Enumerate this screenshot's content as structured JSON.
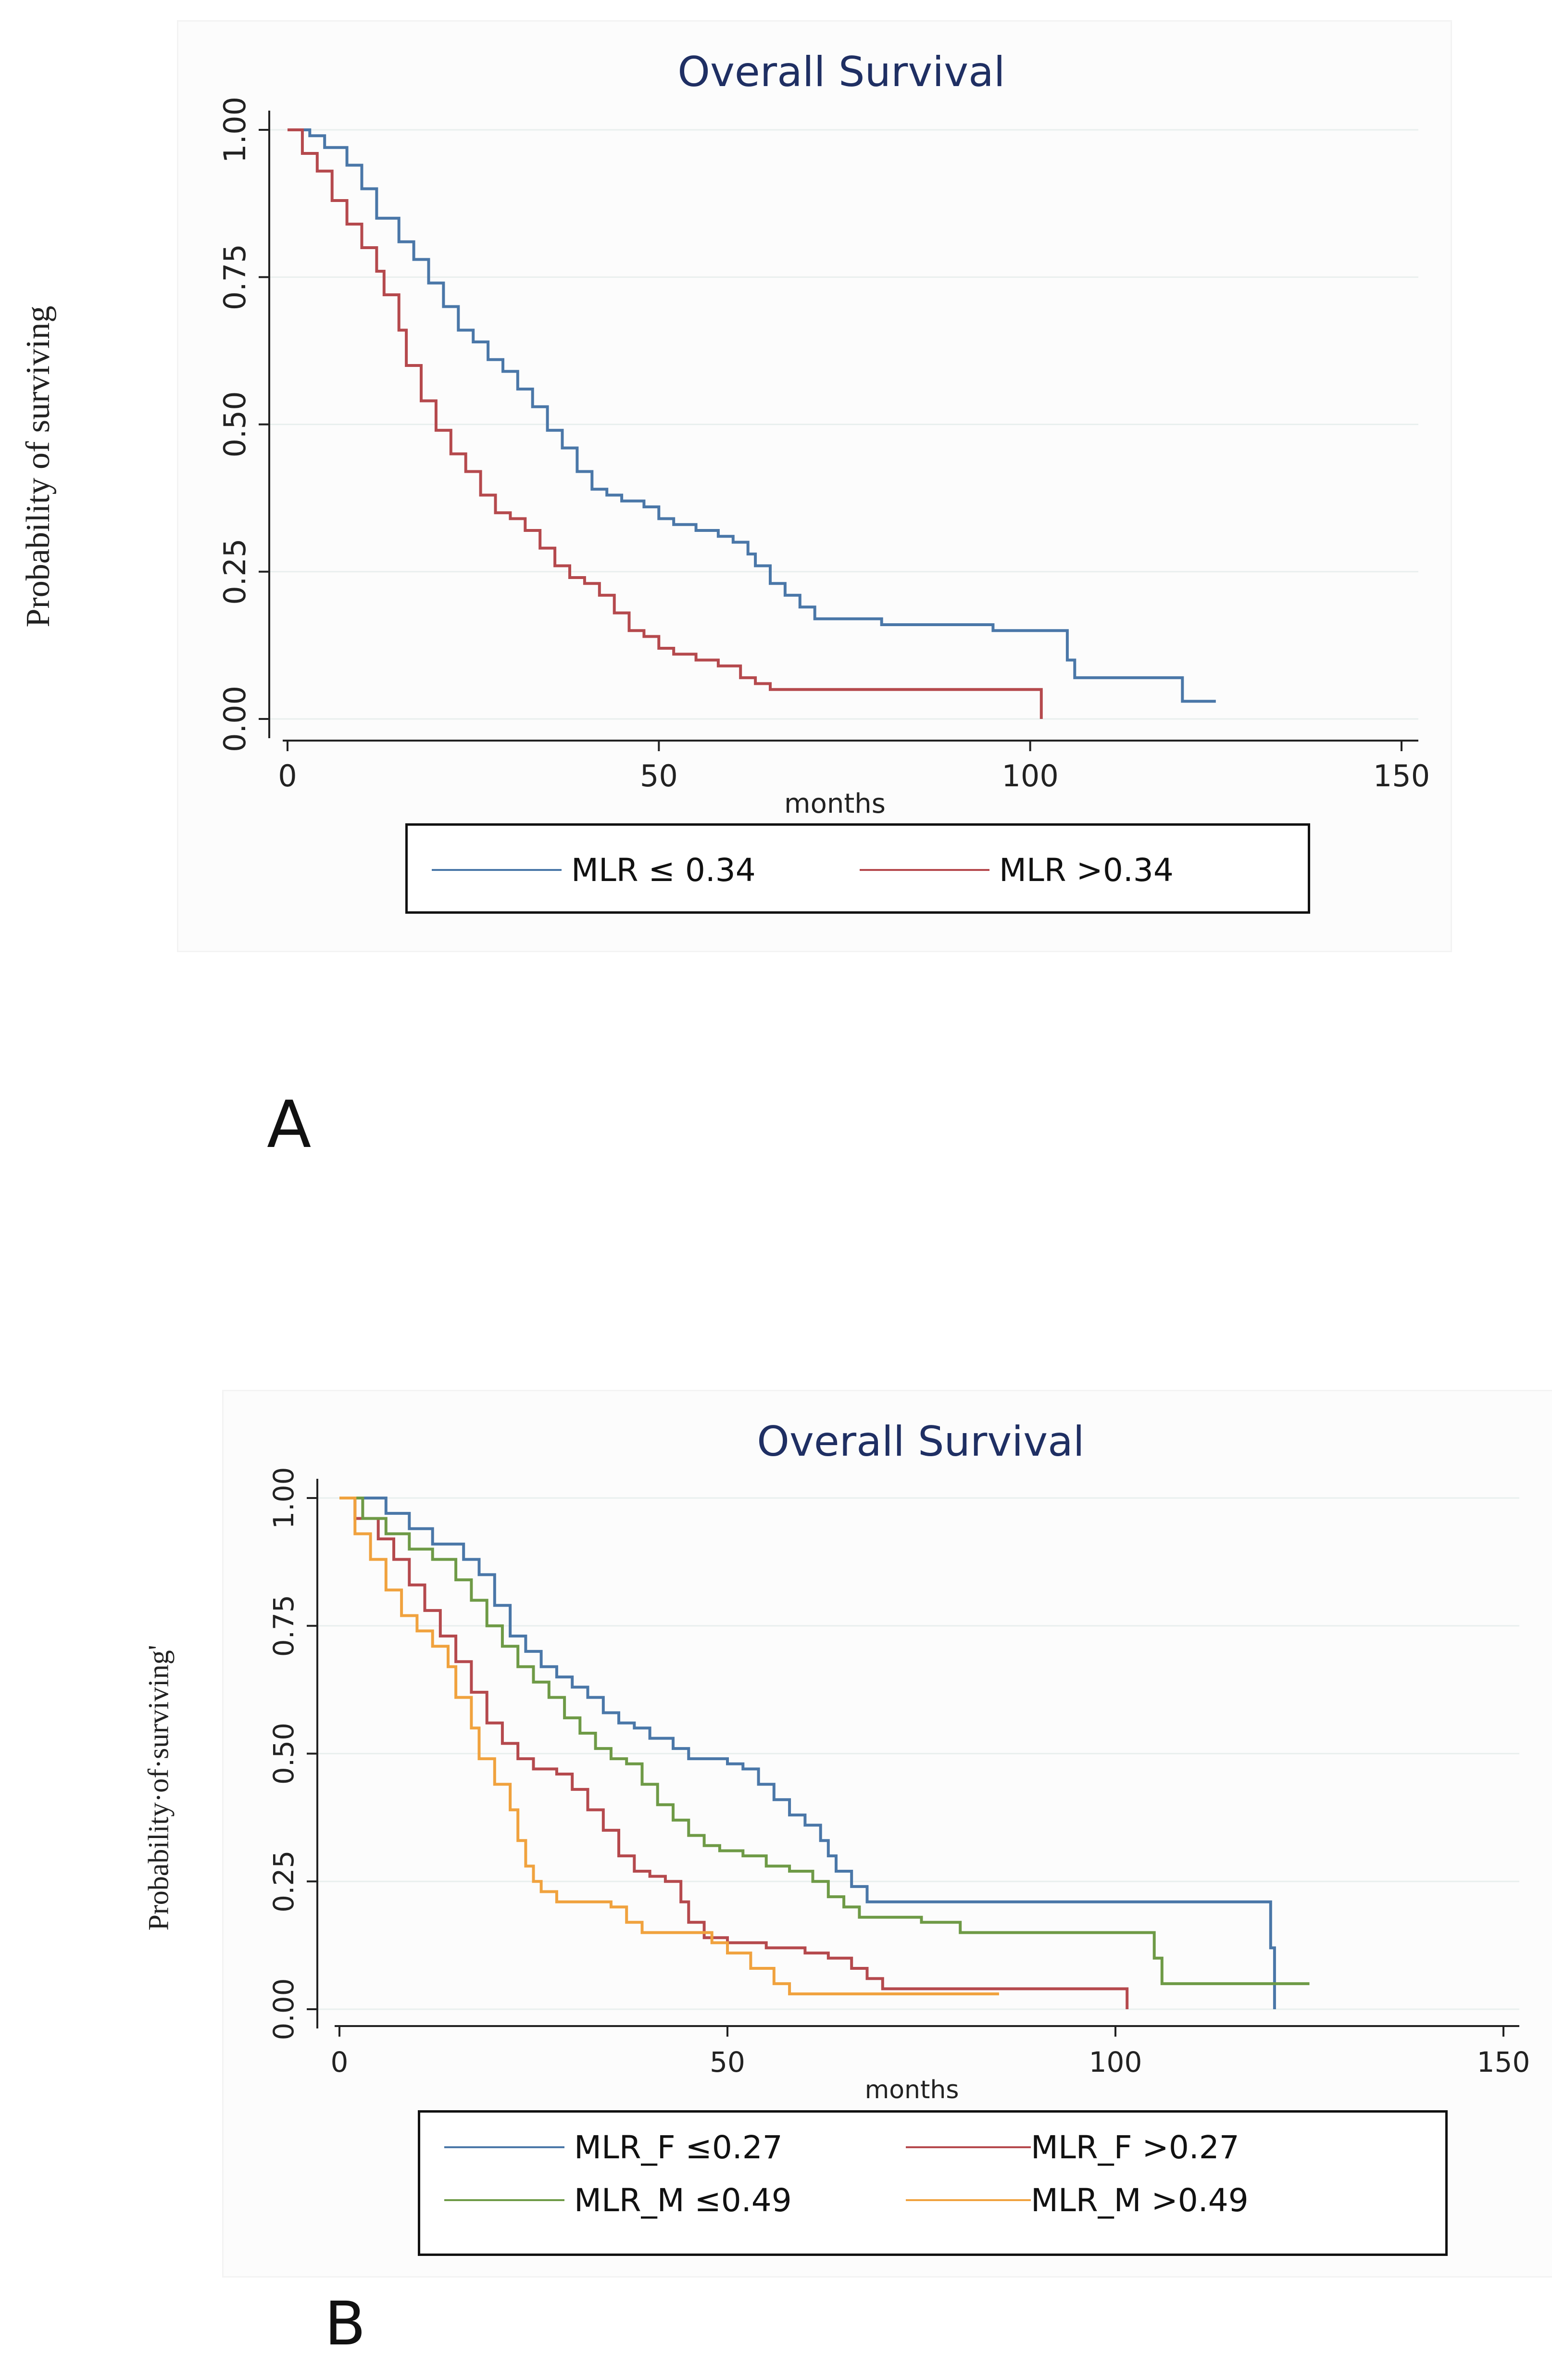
{
  "chart_data": [
    {
      "type": "line",
      "panel_label": "A",
      "title": "Overall Survival",
      "xlabel": "months",
      "ylabel": "Probability of surviving",
      "xlim": [
        0,
        150
      ],
      "ylim": [
        0,
        1
      ],
      "xticks": [
        "0",
        "50",
        "100",
        "150"
      ],
      "yticks": [
        "0.00",
        "0.25",
        "0.50",
        "0.75",
        "1.00"
      ],
      "grid": true,
      "legend_position": "bottom",
      "series": [
        {
          "name": "MLR  ≤ 0.34",
          "color": "#4a77a8",
          "points": [
            [
              0,
              1.0
            ],
            [
              3,
              0.99
            ],
            [
              5,
              0.97
            ],
            [
              8,
              0.94
            ],
            [
              10,
              0.9
            ],
            [
              12,
              0.85
            ],
            [
              15,
              0.81
            ],
            [
              17,
              0.78
            ],
            [
              19,
              0.74
            ],
            [
              21,
              0.7
            ],
            [
              23,
              0.66
            ],
            [
              25,
              0.64
            ],
            [
              27,
              0.61
            ],
            [
              29,
              0.59
            ],
            [
              31,
              0.56
            ],
            [
              33,
              0.53
            ],
            [
              35,
              0.49
            ],
            [
              37,
              0.46
            ],
            [
              39,
              0.42
            ],
            [
              41,
              0.39
            ],
            [
              43,
              0.38
            ],
            [
              45,
              0.37
            ],
            [
              48,
              0.36
            ],
            [
              50,
              0.34
            ],
            [
              52,
              0.33
            ],
            [
              55,
              0.32
            ],
            [
              58,
              0.31
            ],
            [
              60,
              0.3
            ],
            [
              62,
              0.28
            ],
            [
              63,
              0.26
            ],
            [
              65,
              0.23
            ],
            [
              67,
              0.21
            ],
            [
              69,
              0.19
            ],
            [
              71,
              0.17
            ],
            [
              75,
              0.17
            ],
            [
              80,
              0.16
            ],
            [
              85,
              0.16
            ],
            [
              90,
              0.16
            ],
            [
              95,
              0.15
            ],
            [
              100,
              0.15
            ],
            [
              104,
              0.15
            ],
            [
              105,
              0.1
            ],
            [
              106,
              0.07
            ],
            [
              110,
              0.07
            ],
            [
              115,
              0.07
            ],
            [
              120,
              0.07
            ],
            [
              120.5,
              0.03
            ],
            [
              125,
              0.03
            ]
          ]
        },
        {
          "name": "MLR >0.34",
          "color": "#b5494d",
          "points": [
            [
              0,
              1.0
            ],
            [
              2,
              0.96
            ],
            [
              4,
              0.93
            ],
            [
              6,
              0.88
            ],
            [
              8,
              0.84
            ],
            [
              10,
              0.8
            ],
            [
              12,
              0.76
            ],
            [
              13,
              0.72
            ],
            [
              15,
              0.66
            ],
            [
              16,
              0.6
            ],
            [
              18,
              0.54
            ],
            [
              20,
              0.49
            ],
            [
              22,
              0.45
            ],
            [
              24,
              0.42
            ],
            [
              26,
              0.38
            ],
            [
              28,
              0.35
            ],
            [
              30,
              0.34
            ],
            [
              32,
              0.32
            ],
            [
              34,
              0.29
            ],
            [
              36,
              0.26
            ],
            [
              38,
              0.24
            ],
            [
              40,
              0.23
            ],
            [
              42,
              0.21
            ],
            [
              44,
              0.18
            ],
            [
              46,
              0.15
            ],
            [
              48,
              0.14
            ],
            [
              50,
              0.12
            ],
            [
              52,
              0.11
            ],
            [
              55,
              0.1
            ],
            [
              58,
              0.09
            ],
            [
              61,
              0.07
            ],
            [
              63,
              0.06
            ],
            [
              65,
              0.05
            ],
            [
              70,
              0.05
            ],
            [
              80,
              0.05
            ],
            [
              90,
              0.05
            ],
            [
              100,
              0.05
            ],
            [
              101,
              0.05
            ],
            [
              101.5,
              0.0
            ]
          ]
        }
      ]
    },
    {
      "type": "line",
      "panel_label": "B",
      "title": "Overall Survival",
      "xlabel": "months",
      "ylabel": "Probability·of·surviving'",
      "xlim": [
        0,
        150
      ],
      "ylim": [
        0,
        1
      ],
      "xticks": [
        "0",
        "50",
        "100",
        "150"
      ],
      "yticks": [
        "0.00",
        "0.25",
        "0.50",
        "0.75",
        "1.00"
      ],
      "grid": true,
      "legend_position": "bottom",
      "series": [
        {
          "name": "MLR_F ≤0.27",
          "color": "#4a77a8",
          "points": [
            [
              0,
              1.0
            ],
            [
              4,
              1.0
            ],
            [
              6,
              0.97
            ],
            [
              9,
              0.94
            ],
            [
              12,
              0.91
            ],
            [
              16,
              0.88
            ],
            [
              18,
              0.85
            ],
            [
              20,
              0.79
            ],
            [
              22,
              0.73
            ],
            [
              24,
              0.7
            ],
            [
              26,
              0.67
            ],
            [
              28,
              0.65
            ],
            [
              30,
              0.63
            ],
            [
              32,
              0.61
            ],
            [
              34,
              0.58
            ],
            [
              36,
              0.56
            ],
            [
              38,
              0.55
            ],
            [
              40,
              0.53
            ],
            [
              43,
              0.51
            ],
            [
              45,
              0.49
            ],
            [
              50,
              0.48
            ],
            [
              52,
              0.47
            ],
            [
              54,
              0.44
            ],
            [
              56,
              0.41
            ],
            [
              58,
              0.38
            ],
            [
              60,
              0.36
            ],
            [
              62,
              0.33
            ],
            [
              63,
              0.3
            ],
            [
              64,
              0.27
            ],
            [
              66,
              0.24
            ],
            [
              68,
              0.21
            ],
            [
              70,
              0.21
            ],
            [
              80,
              0.21
            ],
            [
              90,
              0.21
            ],
            [
              100,
              0.21
            ],
            [
              110,
              0.21
            ],
            [
              119,
              0.21
            ],
            [
              120,
              0.12
            ],
            [
              120.5,
              0.0
            ]
          ]
        },
        {
          "name": "MLR_F >0.27",
          "color": "#b5494d",
          "points": [
            [
              0,
              1.0
            ],
            [
              2,
              0.96
            ],
            [
              5,
              0.92
            ],
            [
              7,
              0.88
            ],
            [
              9,
              0.83
            ],
            [
              11,
              0.78
            ],
            [
              13,
              0.73
            ],
            [
              15,
              0.68
            ],
            [
              17,
              0.62
            ],
            [
              19,
              0.56
            ],
            [
              21,
              0.52
            ],
            [
              23,
              0.49
            ],
            [
              25,
              0.47
            ],
            [
              28,
              0.46
            ],
            [
              30,
              0.43
            ],
            [
              32,
              0.39
            ],
            [
              34,
              0.35
            ],
            [
              36,
              0.3
            ],
            [
              38,
              0.27
            ],
            [
              40,
              0.26
            ],
            [
              42,
              0.25
            ],
            [
              44,
              0.21
            ],
            [
              45,
              0.17
            ],
            [
              47,
              0.14
            ],
            [
              50,
              0.13
            ],
            [
              55,
              0.12
            ],
            [
              60,
              0.11
            ],
            [
              63,
              0.1
            ],
            [
              66,
              0.08
            ],
            [
              68,
              0.06
            ],
            [
              70,
              0.04
            ],
            [
              80,
              0.04
            ],
            [
              90,
              0.04
            ],
            [
              100,
              0.04
            ],
            [
              101,
              0.04
            ],
            [
              101.5,
              0.0
            ]
          ]
        },
        {
          "name": "MLR_M ≤0.49",
          "color": "#6e9a46",
          "points": [
            [
              0,
              1.0
            ],
            [
              3,
              0.96
            ],
            [
              6,
              0.93
            ],
            [
              9,
              0.9
            ],
            [
              12,
              0.88
            ],
            [
              15,
              0.84
            ],
            [
              17,
              0.8
            ],
            [
              19,
              0.75
            ],
            [
              21,
              0.71
            ],
            [
              23,
              0.67
            ],
            [
              25,
              0.64
            ],
            [
              27,
              0.61
            ],
            [
              29,
              0.57
            ],
            [
              31,
              0.54
            ],
            [
              33,
              0.51
            ],
            [
              35,
              0.49
            ],
            [
              37,
              0.48
            ],
            [
              39,
              0.44
            ],
            [
              41,
              0.4
            ],
            [
              43,
              0.37
            ],
            [
              45,
              0.34
            ],
            [
              47,
              0.32
            ],
            [
              49,
              0.31
            ],
            [
              52,
              0.3
            ],
            [
              55,
              0.28
            ],
            [
              58,
              0.27
            ],
            [
              61,
              0.25
            ],
            [
              63,
              0.22
            ],
            [
              65,
              0.2
            ],
            [
              67,
              0.18
            ],
            [
              70,
              0.18
            ],
            [
              75,
              0.17
            ],
            [
              80,
              0.15
            ],
            [
              90,
              0.15
            ],
            [
              100,
              0.15
            ],
            [
              104,
              0.15
            ],
            [
              105,
              0.1
            ],
            [
              106,
              0.05
            ],
            [
              110,
              0.05
            ],
            [
              120,
              0.05
            ],
            [
              125,
              0.05
            ]
          ]
        },
        {
          "name": "MLR_M >0.49",
          "color": "#f0a23e",
          "points": [
            [
              0,
              1.0
            ],
            [
              2,
              0.93
            ],
            [
              4,
              0.88
            ],
            [
              6,
              0.82
            ],
            [
              8,
              0.77
            ],
            [
              10,
              0.74
            ],
            [
              12,
              0.71
            ],
            [
              14,
              0.67
            ],
            [
              15,
              0.61
            ],
            [
              17,
              0.55
            ],
            [
              18,
              0.49
            ],
            [
              20,
              0.44
            ],
            [
              22,
              0.39
            ],
            [
              23,
              0.33
            ],
            [
              24,
              0.28
            ],
            [
              25,
              0.25
            ],
            [
              26,
              0.23
            ],
            [
              28,
              0.21
            ],
            [
              30,
              0.21
            ],
            [
              35,
              0.2
            ],
            [
              37,
              0.17
            ],
            [
              39,
              0.15
            ],
            [
              45,
              0.15
            ],
            [
              48,
              0.13
            ],
            [
              50,
              0.11
            ],
            [
              53,
              0.08
            ],
            [
              56,
              0.05
            ],
            [
              58,
              0.03
            ],
            [
              65,
              0.03
            ],
            [
              70,
              0.03
            ],
            [
              75,
              0.03
            ],
            [
              80,
              0.03
            ],
            [
              85,
              0.03
            ]
          ]
        }
      ]
    }
  ]
}
